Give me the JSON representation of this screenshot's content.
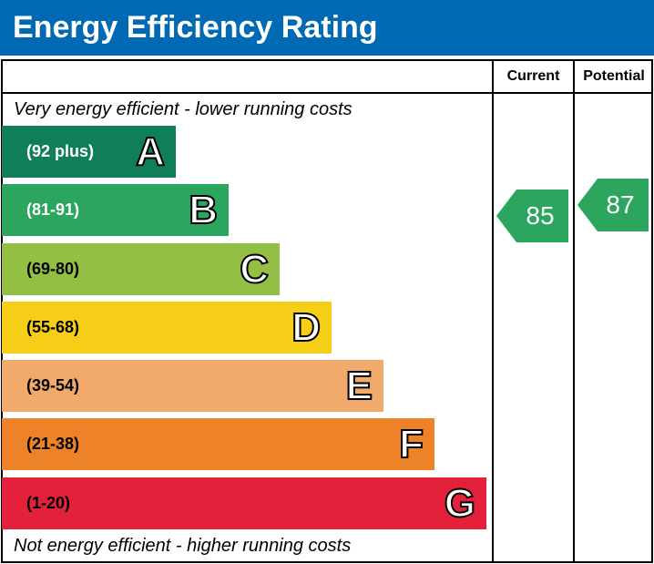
{
  "title": "Energy Efficiency Rating",
  "columns": {
    "current": "Current",
    "potential": "Potential"
  },
  "notes": {
    "top": "Very energy efficient - lower running costs",
    "bottom": "Not energy efficient - higher running costs"
  },
  "chart_data": {
    "type": "bar",
    "bands": [
      {
        "letter": "A",
        "range": "(92 plus)",
        "color": "#117e5a",
        "text_color": "#ffffff"
      },
      {
        "letter": "B",
        "range": "(81-91)",
        "color": "#2ca65e",
        "text_color": "#ffffff"
      },
      {
        "letter": "C",
        "range": "(69-80)",
        "color": "#92bf44",
        "text_color": "#000000"
      },
      {
        "letter": "D",
        "range": "(55-68)",
        "color": "#f6cd17",
        "text_color": "#000000"
      },
      {
        "letter": "E",
        "range": "(39-54)",
        "color": "#f2aa6c",
        "text_color": "#000000"
      },
      {
        "letter": "F",
        "range": "(21-38)",
        "color": "#ee8229",
        "text_color": "#000000"
      },
      {
        "letter": "G",
        "range": "(1-20)",
        "color": "#e3213b",
        "text_color": "#000000"
      }
    ],
    "current": {
      "value": "85",
      "band": "B",
      "color": "#2ca65e"
    },
    "potential": {
      "value": "87",
      "band": "B",
      "color": "#2ca65e"
    }
  }
}
